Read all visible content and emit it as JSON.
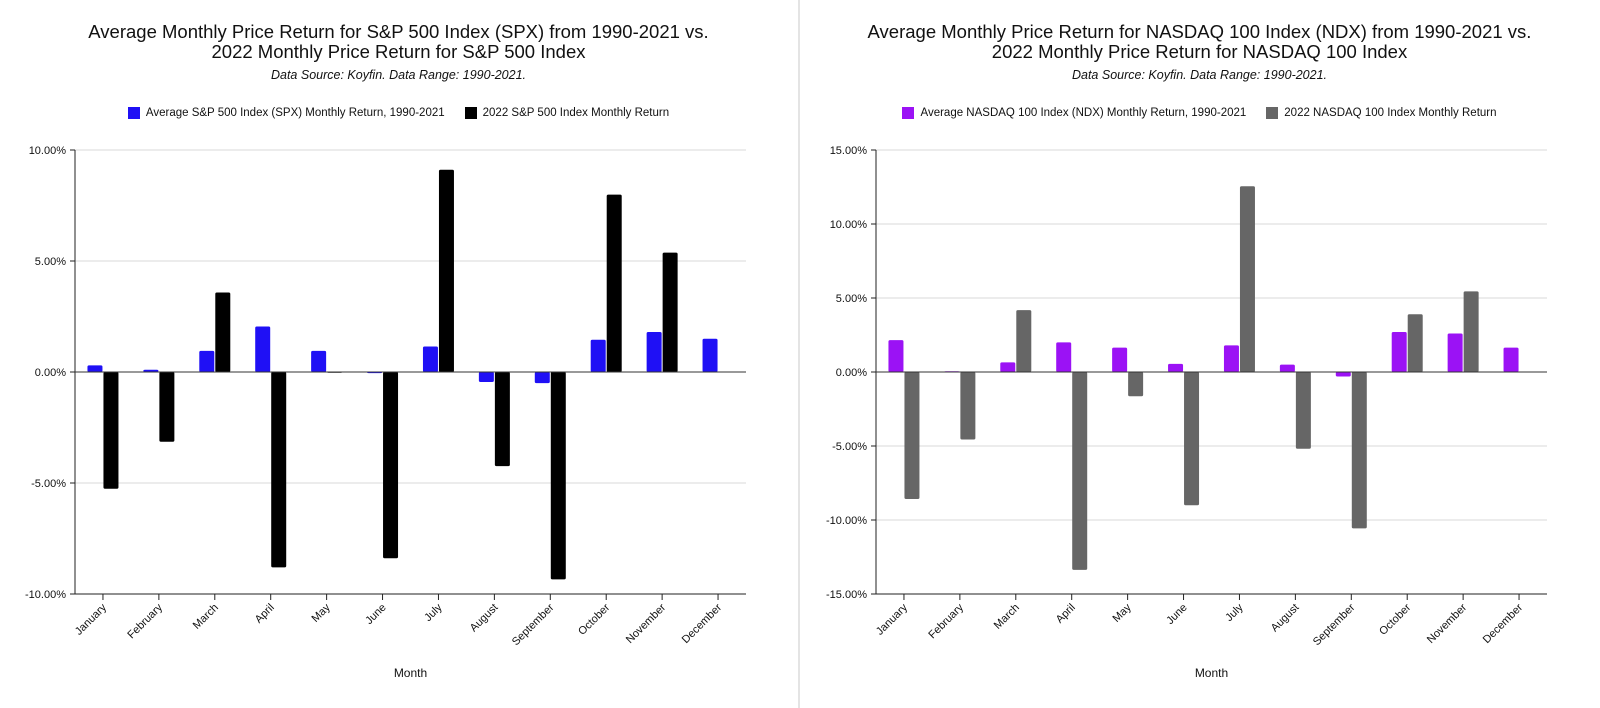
{
  "chart_data": [
    {
      "type": "bar",
      "title_line1": "Average Monthly Price Return for S&P 500 Index (SPX) from 1990-2021 vs.",
      "title_line2": "2022 Monthly Price Return for S&P 500 Index",
      "subtitle": "Data Source: Koyfin. Data Range: 1990-2021.",
      "xlabel": "Month",
      "ylabel": "",
      "ylim": [
        -10,
        10
      ],
      "yticks": [
        10,
        5,
        0,
        -5,
        -10
      ],
      "ytick_labels": [
        "10.00%",
        "5.00%",
        "0.00%",
        "-5.00%",
        "-10.00%"
      ],
      "grid": true,
      "legend_position": "top-center",
      "categories": [
        "January",
        "February",
        "March",
        "April",
        "May",
        "June",
        "July",
        "August",
        "September",
        "October",
        "November",
        "December"
      ],
      "series": [
        {
          "name": "Average S&P 500 Index (SPX) Monthly Return, 1990-2021",
          "color": "#1f10f5",
          "values": [
            0.3,
            0.1,
            0.95,
            2.05,
            0.95,
            -0.05,
            1.15,
            -0.45,
            -0.5,
            1.45,
            1.8,
            1.5
          ]
        },
        {
          "name": "2022 S&P 500 Index Monthly Return",
          "color": "#000000",
          "values": [
            -5.26,
            -3.14,
            3.58,
            -8.8,
            0.0,
            -8.39,
            9.11,
            -4.24,
            -9.34,
            7.99,
            5.38,
            null
          ]
        }
      ]
    },
    {
      "type": "bar",
      "title_line1": "Average Monthly Price Return for NASDAQ 100 Index (NDX) from 1990-2021 vs.",
      "title_line2": "2022 Monthly Price Return for NASDAQ 100 Index",
      "subtitle": "Data Source: Koyfin. Data Range: 1990-2021.",
      "xlabel": "Month",
      "ylabel": "",
      "ylim": [
        -15,
        15
      ],
      "yticks": [
        15,
        10,
        5,
        0,
        -5,
        -10,
        -15
      ],
      "ytick_labels": [
        "15.00%",
        "10.00%",
        "5.00%",
        "0.00%",
        "-5.00%",
        "-10.00%",
        "-15.00%"
      ],
      "grid": true,
      "legend_position": "top-center",
      "categories": [
        "January",
        "February",
        "March",
        "April",
        "May",
        "June",
        "July",
        "August",
        "September",
        "October",
        "November",
        "December"
      ],
      "series": [
        {
          "name": "Average NASDAQ 100 Index (NDX) Monthly Return, 1990-2021",
          "color": "#9b12f5",
          "values": [
            2.15,
            0.05,
            0.65,
            2.0,
            1.65,
            0.55,
            1.8,
            0.5,
            -0.3,
            2.7,
            2.6,
            1.65
          ]
        },
        {
          "name": "2022 NASDAQ 100 Index Monthly Return",
          "color": "#666666",
          "values": [
            -8.58,
            -4.56,
            4.18,
            -13.37,
            -1.64,
            -9.0,
            12.55,
            -5.19,
            -10.57,
            3.9,
            5.45,
            null
          ]
        }
      ]
    }
  ]
}
